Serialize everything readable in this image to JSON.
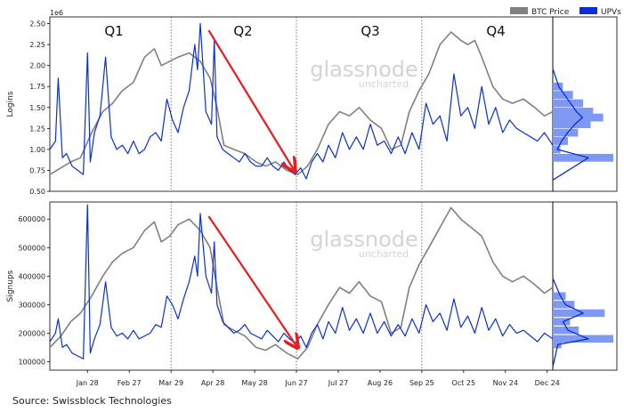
{
  "legend": [
    {
      "label": "BTC Price",
      "color": "#808080"
    },
    {
      "label": "UPVs",
      "color": "#0a2fd9"
    }
  ],
  "source": "Source: Swissblock Technologies",
  "watermark": {
    "brand": "glassnode",
    "sub": "uncharted"
  },
  "quarters": [
    "Q1",
    "Q2",
    "Q3",
    "Q4"
  ],
  "quarter_boundaries": [
    "Mar 29",
    "Jun 27",
    "Sep 25",
    "Dec 24"
  ],
  "x_ticks": [
    "Jan 28",
    "Feb 27",
    "Mar 29",
    "Apr 28",
    "May 28",
    "Jun 27",
    "Jul 27",
    "Aug 26",
    "Sep 25",
    "Oct 25",
    "Nov 24",
    "Dec 24"
  ],
  "chart_data": [
    {
      "type": "line",
      "ylabel": "Logins",
      "y_scale_note": "1e6",
      "ylim": [
        0.5,
        2.58
      ],
      "yticks": [
        "0.50",
        "0.75",
        "1.00",
        "1.25",
        "1.50",
        "1.75",
        "2.00",
        "2.25",
        "2.50"
      ],
      "ytick_values": [
        0.5,
        0.75,
        1.0,
        1.25,
        1.5,
        1.75,
        2.0,
        2.25,
        2.5
      ],
      "xlim": [
        0,
        361
      ],
      "x_tick_positions": [
        27,
        57,
        87,
        117,
        147,
        177,
        207,
        237,
        267,
        297,
        327,
        357
      ],
      "series": [
        {
          "name": "BTC Price",
          "color": "#808080",
          "x": [
            0,
            8,
            15,
            22,
            30,
            38,
            45,
            52,
            60,
            68,
            75,
            80,
            86,
            92,
            100,
            108,
            115,
            120,
            125,
            132,
            140,
            148,
            155,
            162,
            170,
            178,
            185,
            192,
            200,
            208,
            215,
            222,
            230,
            238,
            245,
            252,
            258,
            265,
            272,
            280,
            288,
            295,
            300,
            305,
            310,
            318,
            325,
            332,
            340,
            348,
            355,
            361
          ],
          "values": [
            0.7,
            0.78,
            0.85,
            0.9,
            1.2,
            1.45,
            1.55,
            1.7,
            1.8,
            2.1,
            2.2,
            2.0,
            2.05,
            2.1,
            2.15,
            2.05,
            1.85,
            1.5,
            1.05,
            1.0,
            0.95,
            0.85,
            0.8,
            0.85,
            0.75,
            0.7,
            0.8,
            1.0,
            1.3,
            1.45,
            1.4,
            1.5,
            1.35,
            1.25,
            1.0,
            1.05,
            1.45,
            1.7,
            1.9,
            2.25,
            2.4,
            2.3,
            2.25,
            2.3,
            2.1,
            1.75,
            1.6,
            1.55,
            1.6,
            1.5,
            1.4,
            1.45
          ]
        },
        {
          "name": "UPVs",
          "color": "#0a2fd9",
          "x": [
            0,
            4,
            6,
            9,
            12,
            16,
            20,
            24,
            27,
            29,
            32,
            36,
            40,
            44,
            48,
            52,
            56,
            60,
            64,
            68,
            72,
            76,
            80,
            84,
            88,
            92,
            96,
            100,
            104,
            106,
            108,
            112,
            116,
            118,
            120,
            124,
            128,
            132,
            136,
            140,
            144,
            148,
            152,
            156,
            160,
            164,
            168,
            172,
            176,
            180,
            184,
            188,
            192,
            196,
            200,
            205,
            210,
            215,
            220,
            225,
            230,
            235,
            240,
            245,
            250,
            255,
            260,
            265,
            270,
            275,
            280,
            285,
            290,
            295,
            300,
            305,
            310,
            315,
            320,
            325,
            330,
            335,
            340,
            345,
            350,
            355,
            361
          ],
          "values": [
            1.0,
            1.1,
            1.85,
            0.9,
            0.95,
            0.8,
            0.75,
            0.7,
            2.15,
            0.85,
            1.2,
            1.4,
            2.1,
            1.15,
            1.0,
            1.05,
            0.95,
            1.1,
            0.95,
            1.0,
            1.15,
            1.2,
            1.1,
            1.6,
            1.35,
            1.2,
            1.5,
            1.7,
            2.25,
            1.95,
            2.5,
            1.45,
            1.3,
            2.3,
            1.15,
            1.0,
            0.95,
            0.9,
            0.85,
            0.95,
            0.85,
            0.8,
            0.8,
            0.9,
            0.8,
            0.75,
            0.85,
            0.75,
            0.7,
            0.78,
            0.65,
            0.85,
            0.95,
            0.85,
            1.05,
            0.9,
            1.2,
            1.0,
            1.15,
            1.0,
            1.3,
            1.05,
            1.1,
            0.95,
            1.15,
            0.95,
            1.2,
            1.0,
            1.55,
            1.3,
            1.4,
            1.1,
            1.9,
            1.4,
            1.5,
            1.25,
            1.75,
            1.3,
            1.5,
            1.2,
            1.35,
            1.25,
            1.2,
            1.15,
            1.1,
            1.2,
            1.05
          ]
        }
      ],
      "annotation": {
        "type": "arrow",
        "color": "#e81c1c",
        "from": [
          114,
          2.42
        ],
        "to": [
          175,
          0.76
        ]
      },
      "side_hist": {
        "bins": [
          1.75,
          1.65,
          1.55,
          1.45,
          1.38,
          1.3,
          1.2,
          1.1,
          1.0,
          0.9
        ],
        "counts": [
          4,
          8,
          12,
          16,
          20,
          15,
          10,
          6,
          3,
          24
        ],
        "color": "#7f98f2",
        "kde_color": "#0a2fd9"
      }
    },
    {
      "type": "line",
      "ylabel": "Signups",
      "ylim": [
        70000,
        660000
      ],
      "yticks": [
        "100000",
        "200000",
        "300000",
        "400000",
        "500000",
        "600000"
      ],
      "ytick_values": [
        100000,
        200000,
        300000,
        400000,
        500000,
        600000
      ],
      "xlim": [
        0,
        361
      ],
      "x_tick_positions": [
        27,
        57,
        87,
        117,
        147,
        177,
        207,
        237,
        267,
        297,
        327,
        357
      ],
      "series": [
        {
          "name": "BTC Price",
          "color": "#808080",
          "x": [
            0,
            8,
            15,
            22,
            30,
            38,
            45,
            52,
            60,
            68,
            75,
            80,
            86,
            92,
            100,
            108,
            115,
            120,
            125,
            132,
            140,
            148,
            155,
            162,
            170,
            178,
            185,
            192,
            200,
            208,
            215,
            222,
            230,
            238,
            245,
            252,
            258,
            265,
            272,
            280,
            288,
            295,
            300,
            305,
            310,
            318,
            325,
            332,
            340,
            348,
            355,
            361
          ],
          "values": [
            150000,
            190000,
            240000,
            270000,
            330000,
            400000,
            450000,
            480000,
            500000,
            560000,
            590000,
            520000,
            540000,
            580000,
            600000,
            560000,
            500000,
            360000,
            230000,
            210000,
            190000,
            150000,
            140000,
            160000,
            130000,
            110000,
            150000,
            230000,
            300000,
            360000,
            340000,
            380000,
            330000,
            310000,
            200000,
            220000,
            360000,
            440000,
            500000,
            570000,
            640000,
            600000,
            580000,
            560000,
            540000,
            450000,
            400000,
            380000,
            400000,
            370000,
            340000,
            360000
          ]
        },
        {
          "name": "UPVs",
          "color": "#0a2fd9",
          "x": [
            0,
            4,
            6,
            9,
            12,
            16,
            20,
            24,
            27,
            29,
            32,
            36,
            40,
            44,
            48,
            52,
            56,
            60,
            64,
            68,
            72,
            76,
            80,
            84,
            88,
            92,
            96,
            100,
            104,
            106,
            108,
            112,
            116,
            118,
            120,
            124,
            128,
            132,
            136,
            140,
            144,
            148,
            152,
            156,
            160,
            164,
            168,
            172,
            176,
            180,
            184,
            188,
            192,
            196,
            200,
            205,
            210,
            215,
            220,
            225,
            230,
            235,
            240,
            245,
            250,
            255,
            260,
            265,
            270,
            275,
            280,
            285,
            290,
            295,
            300,
            305,
            310,
            315,
            320,
            325,
            330,
            335,
            340,
            345,
            350,
            355,
            361
          ],
          "values": [
            170000,
            200000,
            250000,
            150000,
            160000,
            130000,
            120000,
            110000,
            650000,
            130000,
            180000,
            230000,
            380000,
            220000,
            190000,
            200000,
            180000,
            210000,
            180000,
            190000,
            200000,
            230000,
            220000,
            330000,
            300000,
            250000,
            320000,
            380000,
            470000,
            400000,
            620000,
            400000,
            340000,
            520000,
            300000,
            240000,
            220000,
            200000,
            210000,
            230000,
            200000,
            190000,
            180000,
            210000,
            190000,
            170000,
            200000,
            180000,
            165000,
            190000,
            150000,
            200000,
            230000,
            180000,
            240000,
            200000,
            290000,
            210000,
            250000,
            200000,
            270000,
            200000,
            240000,
            190000,
            230000,
            190000,
            250000,
            200000,
            300000,
            240000,
            270000,
            210000,
            320000,
            220000,
            260000,
            200000,
            290000,
            210000,
            250000,
            190000,
            230000,
            200000,
            210000,
            190000,
            170000,
            200000,
            180000
          ]
        }
      ],
      "annotation": {
        "type": "arrow",
        "color": "#e81c1c",
        "from": [
          114,
          610000
        ],
        "to": [
          177,
          155000
        ]
      },
      "side_hist": {
        "bins": [
          330000,
          300000,
          270000,
          240000,
          210000,
          180000,
          160000
        ],
        "counts": [
          6,
          10,
          24,
          8,
          12,
          28,
          4
        ],
        "color": "#7f98f2",
        "kde_color": "#0a2fd9"
      }
    }
  ]
}
